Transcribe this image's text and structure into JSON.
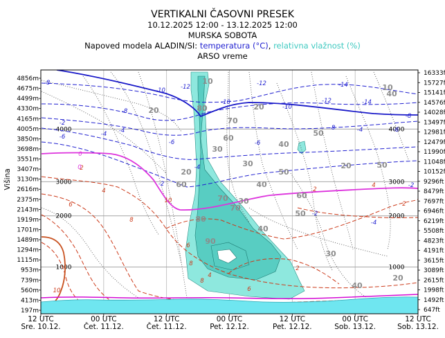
{
  "header": {
    "title": "VERTIKALNI ČASOVNI PRESEK",
    "period": "10.12.2025 12:00 - 13.12.2025 12:00",
    "location": "MURSKA SOBOTA",
    "model_prefix": "Napoved modela ALADIN/SI: ",
    "model_temp": "temperatura (°C)",
    "model_sep": ", ",
    "model_hum": "relativna vlažnost (%)",
    "source": "ARSO vreme"
  },
  "colors": {
    "temperature_negative": "#2020d0",
    "temperature_positive": "#cc3a1a",
    "zero_isotherm": "#dd33dd",
    "humidity_fill": "#8ee8de",
    "humidity_dark_fill": "#58cdc2",
    "grid": "#b8b8b8",
    "ground": "#6fe6f0"
  },
  "chart_data": {
    "type": "heatmap",
    "title": "VERTIKALNI ČASOVNI PRESEK",
    "ylabel": "Višina",
    "y_left_labels_m": [
      "4856m",
      "4675m",
      "4499m",
      "4330m",
      "4165m",
      "4005m",
      "3850m",
      "3698m",
      "3551m",
      "3407m",
      "3130m",
      "2616m",
      "2375m",
      "2143m",
      "1919m",
      "1701m",
      "1489m",
      "1294m",
      "1115m",
      "953m",
      "739m",
      "560m",
      "413m",
      "197m"
    ],
    "y_right_labels_ft": [
      "16333ft",
      "15727ft",
      "15141ft",
      "14576ft",
      "14028ft",
      "13497ft",
      "12981ft",
      "12479ft",
      "11990ft",
      "11048ft",
      "10152ft",
      "9296ft",
      "8479ft",
      "7697ft",
      "6946ft",
      "6219ft",
      "5508ft",
      "4823ft",
      "4191ft",
      "3615ft",
      "3089ft",
      "2615ft",
      "1998ft",
      "1492ft",
      "647ft"
    ],
    "x_ticks": [
      {
        "time": "12 UTC",
        "day": "Sre. 10.12."
      },
      {
        "time": "00 UTC",
        "day": "Čet. 11.12."
      },
      {
        "time": "12 UTC",
        "day": "Čet. 11.12."
      },
      {
        "time": "00 UTC",
        "day": "Pet. 12.12."
      },
      {
        "time": "12 UTC",
        "day": "Pet. 12.12."
      },
      {
        "time": "00 UTC",
        "day": "Sob. 13.12."
      },
      {
        "time": "12 UTC",
        "day": "Sob. 13.12."
      }
    ],
    "height_gridlines_m": [
      4000,
      3000,
      2000,
      1000
    ],
    "height_gridline_labels": [
      "4000",
      "3000",
      "2000",
      "1000"
    ],
    "temperature_label_values": [
      "-8",
      "-10",
      "-12",
      "-14",
      "-10",
      "-12",
      "-6",
      "-4",
      "-2",
      "-4",
      "-6",
      "-8",
      "-10",
      "-12",
      "-14",
      "-8",
      "-6",
      "-4",
      "-2",
      "0",
      "2",
      "4",
      "6",
      "8",
      "10",
      "0",
      "2",
      "4",
      "2",
      "-2",
      "-4",
      "-2",
      "-4",
      "-6",
      "-8",
      "6",
      "8",
      "4",
      "2",
      "6",
      "8",
      "10"
    ],
    "humidity_label_values": [
      "20",
      "30",
      "40",
      "50",
      "60",
      "70",
      "80",
      "90",
      "20",
      "30",
      "40",
      "50",
      "60",
      "70",
      "80",
      "70",
      "60",
      "50",
      "40",
      "30",
      "20",
      "10",
      "10",
      "20",
      "40",
      "20",
      "40",
      "50",
      "30"
    ],
    "grid": true
  }
}
